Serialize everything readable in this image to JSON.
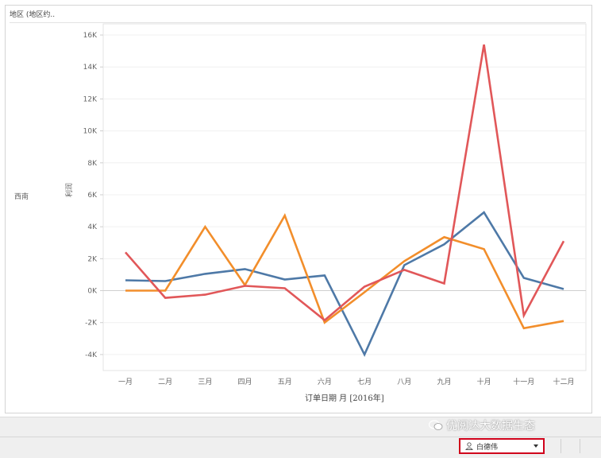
{
  "header": {
    "row_header_title": "地区 (地区约.."
  },
  "row_label": "西南",
  "y_axis_title": "利润",
  "x_axis_title": "订单日期 月 [2016年]",
  "watermark": "优阅达大数据生态",
  "user_dropdown": {
    "label": "白德伟"
  },
  "chart_data": {
    "type": "line",
    "x": [
      "一月",
      "二月",
      "三月",
      "四月",
      "五月",
      "六月",
      "七月",
      "八月",
      "九月",
      "十月",
      "十一月",
      "十二月"
    ],
    "ylim": [
      -5000,
      16500
    ],
    "yticks": [
      -4000,
      -2000,
      0,
      2000,
      4000,
      6000,
      8000,
      10000,
      12000,
      14000,
      16000
    ],
    "ytick_labels": [
      "-4K",
      "-2K",
      "0K",
      "2K",
      "4K",
      "6K",
      "8K",
      "10K",
      "12K",
      "14K",
      "16K"
    ],
    "grid": true,
    "series": [
      {
        "color": "#4e79a7",
        "values": [
          650,
          600,
          1050,
          1350,
          700,
          950,
          -4000,
          1600,
          2900,
          4900,
          800,
          100
        ]
      },
      {
        "color": "#f28e2b",
        "values": [
          0,
          0,
          4000,
          350,
          4700,
          -2000,
          -100,
          1850,
          3350,
          2600,
          -2350,
          -1900
        ]
      },
      {
        "color": "#e15759",
        "values": [
          2400,
          -450,
          -250,
          300,
          150,
          -1850,
          250,
          1300,
          450,
          15400,
          -1550,
          3100
        ]
      }
    ]
  }
}
